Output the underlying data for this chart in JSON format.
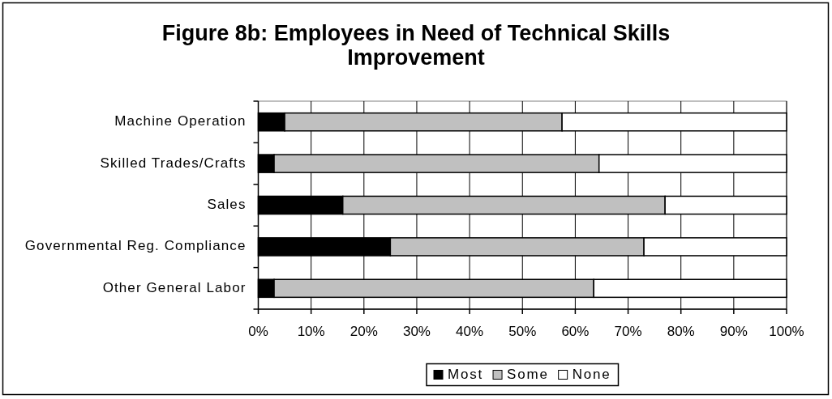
{
  "chart_data": {
    "type": "bar",
    "title": "Figure 8b: Employees in Need of Technical Skills Improvement",
    "categories": [
      "Machine Operation",
      "Skilled Trades/Crafts",
      "Sales",
      "Governmental Reg. Compliance",
      "Other General Labor"
    ],
    "orientation": "horizontal",
    "stacked": true,
    "series": [
      {
        "name": "Most",
        "color": "#000000",
        "values": [
          5,
          3,
          16,
          25,
          3
        ]
      },
      {
        "name": "Some",
        "color": "#c0c0c0",
        "values": [
          52.5,
          61.5,
          61,
          48,
          60.5
        ]
      },
      {
        "name": "None",
        "color": "#ffffff",
        "values": [
          42.5,
          35.5,
          23,
          27,
          36.5
        ]
      }
    ],
    "xlim": [
      0,
      100
    ],
    "xticks": [
      {
        "value": 0,
        "label": "0%"
      },
      {
        "value": 10,
        "label": "10%"
      },
      {
        "value": 20,
        "label": "20%"
      },
      {
        "value": 30,
        "label": "30%"
      },
      {
        "value": 40,
        "label": "40%"
      },
      {
        "value": 50,
        "label": "50%"
      },
      {
        "value": 60,
        "label": "60%"
      },
      {
        "value": 70,
        "label": "70%"
      },
      {
        "value": 80,
        "label": "80%"
      },
      {
        "value": 90,
        "label": "90%"
      },
      {
        "value": 100,
        "label": "100%"
      }
    ],
    "grid": "x",
    "legend": "bottom"
  }
}
